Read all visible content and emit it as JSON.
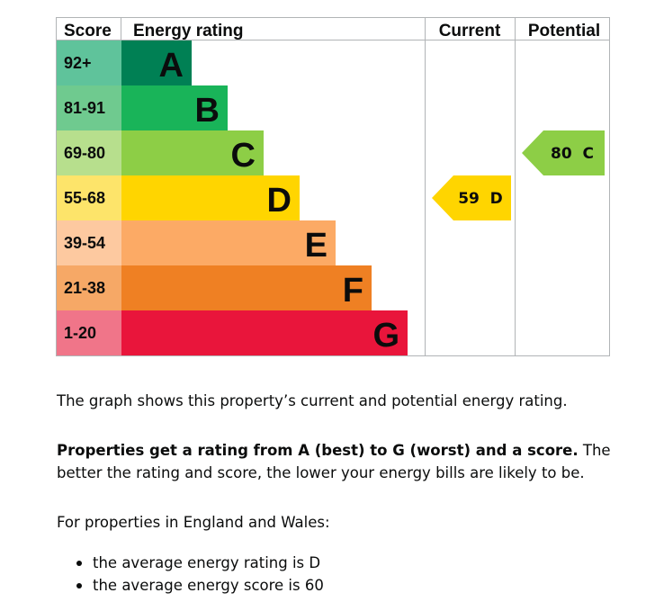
{
  "chart_data": {
    "type": "bar",
    "headers": {
      "score": "Score",
      "rating": "Energy rating",
      "current": "Current",
      "potential": "Potential"
    },
    "bands": [
      {
        "letter": "A",
        "range": "92+",
        "min": 92,
        "max": 100,
        "color": "#008054",
        "score_bg": "#5fc39b"
      },
      {
        "letter": "B",
        "range": "81-91",
        "min": 81,
        "max": 91,
        "color": "#19b459",
        "score_bg": "#6fca8f"
      },
      {
        "letter": "C",
        "range": "69-80",
        "min": 69,
        "max": 80,
        "color": "#8dce46",
        "score_bg": "#b7df8d"
      },
      {
        "letter": "D",
        "range": "55-68",
        "min": 55,
        "max": 68,
        "color": "#ffd500",
        "score_bg": "#fde46a"
      },
      {
        "letter": "E",
        "range": "39-54",
        "min": 39,
        "max": 54,
        "color": "#fcaa65",
        "score_bg": "#fdc9a0"
      },
      {
        "letter": "F",
        "range": "21-38",
        "min": 21,
        "max": 38,
        "color": "#ef8023",
        "score_bg": "#f6a866"
      },
      {
        "letter": "G",
        "range": "1-20",
        "min": 1,
        "max": 20,
        "color": "#e9153b",
        "score_bg": "#f07589"
      }
    ],
    "current": {
      "score": 59,
      "letter": "D",
      "label": "59  D",
      "color": "#ffd500"
    },
    "potential": {
      "score": 80,
      "letter": "C",
      "label": "80  C",
      "color": "#8dce46"
    }
  },
  "text": {
    "summary": "The graph shows this property’s current and potential energy rating.",
    "rating_bold": "Properties get a rating from A (best) to G (worst) and a score.",
    "rating_rest": " The better the rating and score, the lower your energy bills are likely to be.",
    "average_intro": "For properties in England and Wales:",
    "average_items": [
      "the average energy rating is D",
      "the average energy score is 60"
    ]
  }
}
